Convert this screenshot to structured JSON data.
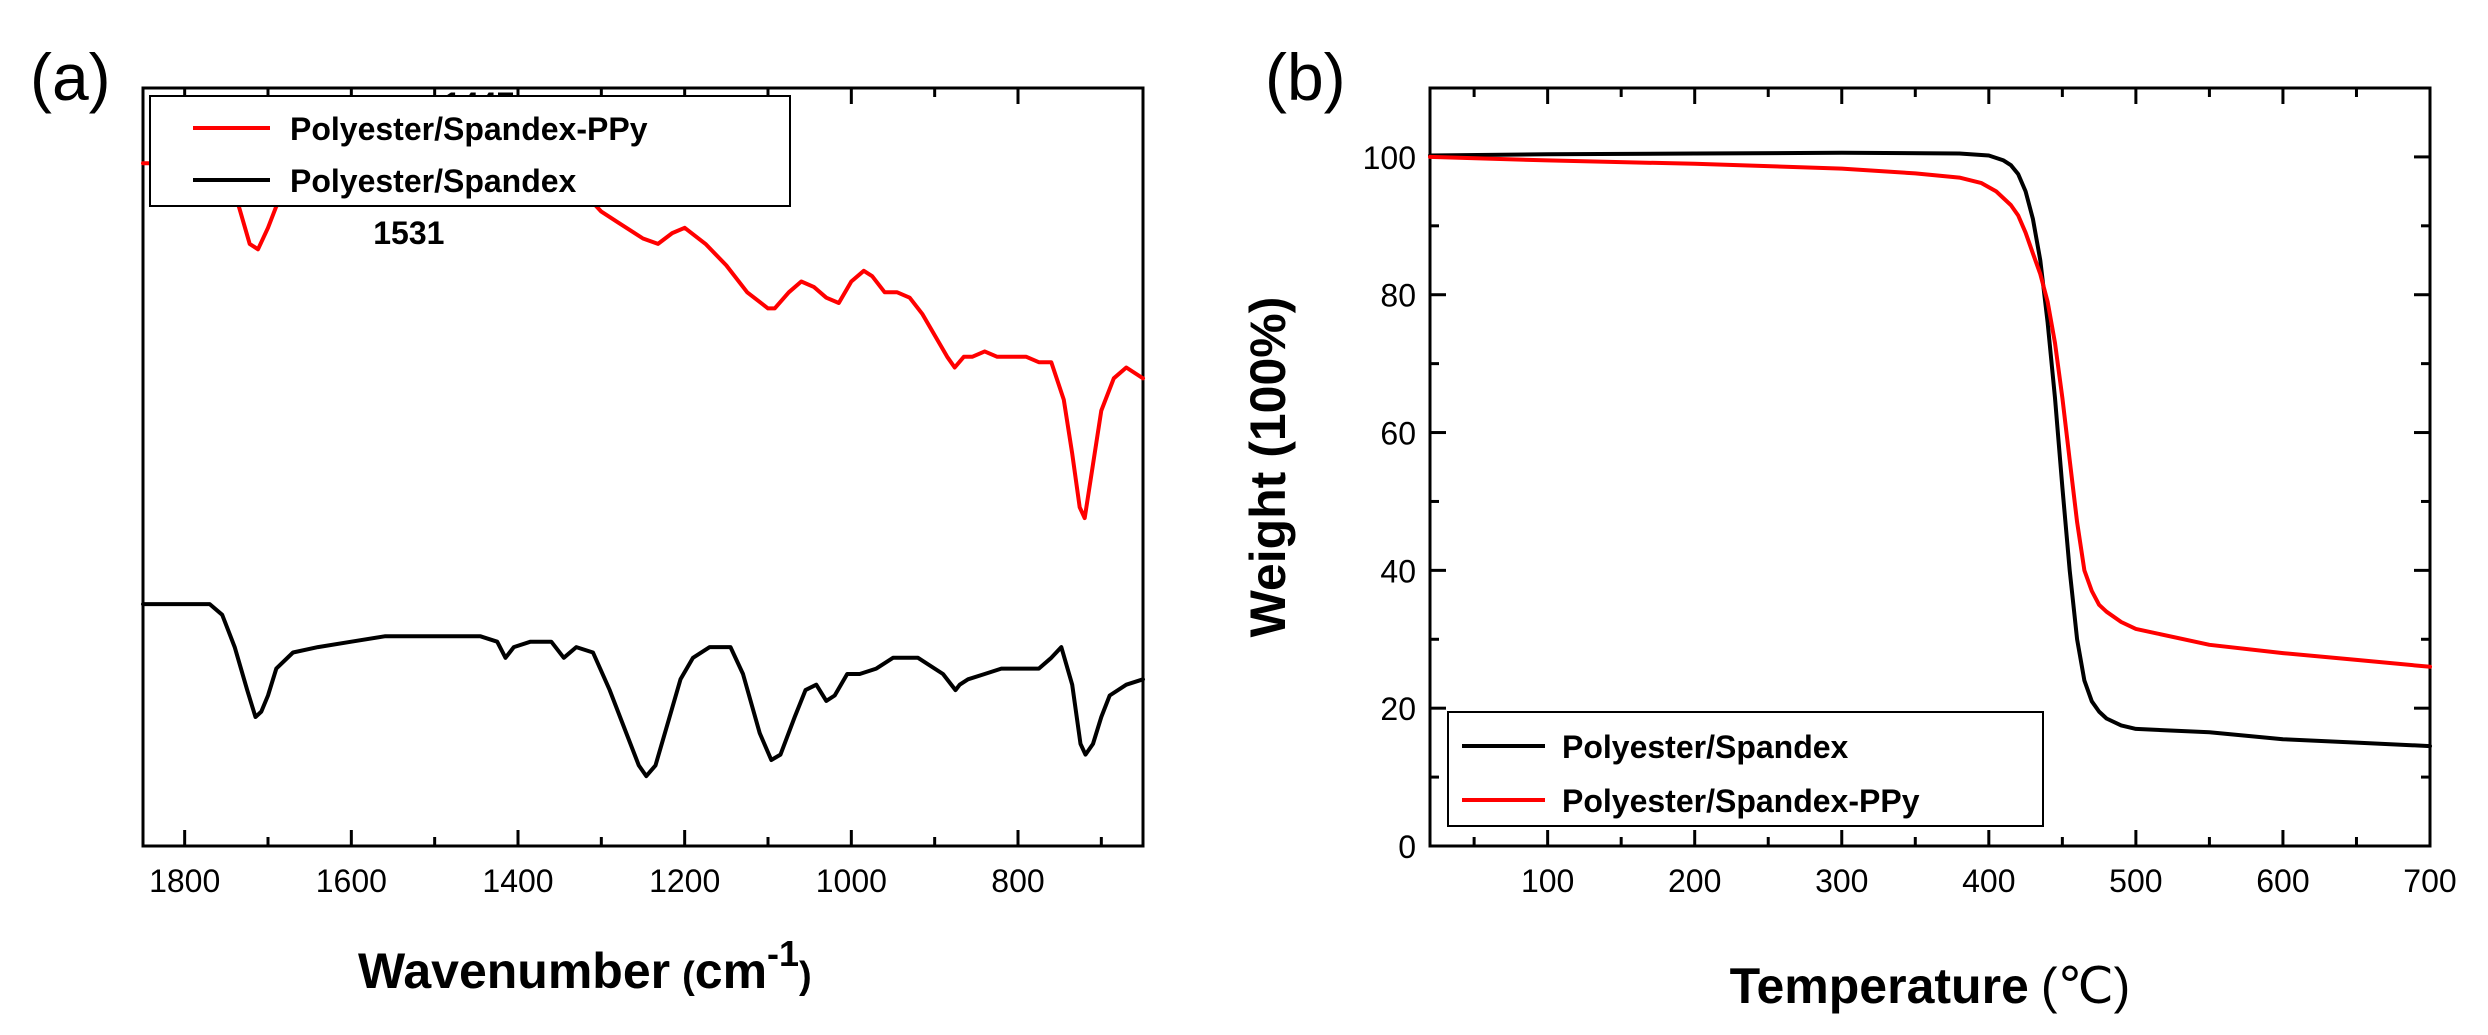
{
  "chart_data": [
    {
      "panel": "(a)",
      "type": "line",
      "xlabel": "Wavenumber",
      "xlabel_unit": "cm",
      "xlabel_unit_exp": "-1",
      "ylabel": "",
      "xlim": [
        1850,
        650
      ],
      "x_ticks": [
        1800,
        1600,
        1400,
        1200,
        1000,
        800
      ],
      "y_ticks_labeled": false,
      "legend_position": "top-left",
      "annotations": [
        {
          "text": "1447",
          "x": 1447,
          "y": 91
        },
        {
          "text": "1531",
          "x": 1531,
          "y": 67
        }
      ],
      "series": [
        {
          "name": "Polyester/Spandex-PPy",
          "color": "#ff0000",
          "x": [
            1850,
            1800,
            1770,
            1750,
            1735,
            1722,
            1712,
            1700,
            1690,
            1670,
            1640,
            1610,
            1585,
            1570,
            1555,
            1531,
            1510,
            1495,
            1480,
            1460,
            1447,
            1430,
            1420,
            1405,
            1380,
            1360,
            1345,
            1330,
            1318,
            1300,
            1280,
            1250,
            1232,
            1215,
            1200,
            1175,
            1150,
            1125,
            1100,
            1092,
            1075,
            1060,
            1045,
            1030,
            1015,
            1000,
            985,
            975,
            960,
            945,
            930,
            915,
            900,
            885,
            876,
            865,
            855,
            840,
            825,
            810,
            790,
            775,
            760,
            745,
            735,
            726,
            720,
            710,
            700,
            685,
            670,
            650
          ],
          "y": [
            82,
            82,
            82,
            80,
            74,
            67,
            66,
            70,
            74,
            77,
            80,
            82,
            83,
            82,
            79,
            76,
            76,
            79,
            78,
            77,
            78,
            78,
            76,
            79,
            80,
            81,
            78,
            78,
            76,
            73,
            71,
            68,
            67,
            69,
            70,
            67,
            63,
            58,
            55,
            55,
            58,
            60,
            59,
            57,
            56,
            60,
            62,
            61,
            58,
            58,
            57,
            54,
            50,
            46,
            44,
            46,
            46,
            47,
            46,
            46,
            46,
            45,
            45,
            38,
            28,
            18,
            16,
            26,
            36,
            42,
            44,
            42
          ]
        },
        {
          "name": "Polyester/Spandex",
          "color": "#000000",
          "x": [
            1850,
            1800,
            1770,
            1755,
            1740,
            1725,
            1715,
            1708,
            1700,
            1690,
            1670,
            1640,
            1600,
            1560,
            1520,
            1480,
            1445,
            1425,
            1415,
            1405,
            1385,
            1360,
            1345,
            1330,
            1310,
            1290,
            1270,
            1255,
            1246,
            1235,
            1220,
            1205,
            1190,
            1170,
            1145,
            1130,
            1110,
            1096,
            1085,
            1068,
            1055,
            1042,
            1030,
            1020,
            1005,
            990,
            970,
            950,
            920,
            890,
            875,
            870,
            860,
            840,
            820,
            800,
            775,
            760,
            748,
            735,
            725,
            719,
            710,
            700,
            690,
            670,
            650
          ],
          "y": [
            0,
            0,
            0,
            -2,
            -8,
            -16,
            -21,
            -20,
            -17,
            -12,
            -9,
            -8,
            -7,
            -6,
            -6,
            -6,
            -6,
            -7,
            -10,
            -8,
            -7,
            -7,
            -10,
            -8,
            -9,
            -16,
            -24,
            -30,
            -32,
            -30,
            -22,
            -14,
            -10,
            -8,
            -8,
            -13,
            -24,
            -29,
            -28,
            -21,
            -16,
            -15,
            -18,
            -17,
            -13,
            -13,
            -12,
            -10,
            -10,
            -13,
            -16,
            -15,
            -14,
            -13,
            -12,
            -12,
            -12,
            -10,
            -8,
            -15,
            -26,
            -28,
            -26,
            -21,
            -17,
            -15,
            -14
          ]
        }
      ]
    },
    {
      "panel": "(b)",
      "type": "line",
      "xlabel": "Temperature",
      "xlabel_unit": "℃",
      "ylabel": "Weight (100%)",
      "xlim": [
        20,
        700
      ],
      "ylim": [
        0,
        110
      ],
      "x_ticks": [
        100,
        200,
        300,
        400,
        500,
        600,
        700
      ],
      "y_ticks": [
        0,
        20,
        40,
        60,
        80,
        100
      ],
      "legend_position": "bottom-left",
      "series": [
        {
          "name": "Polyester/Spandex",
          "color": "#000000",
          "x": [
            20,
            100,
            200,
            300,
            380,
            400,
            410,
            415,
            420,
            425,
            430,
            435,
            440,
            445,
            450,
            455,
            460,
            465,
            470,
            475,
            480,
            490,
            500,
            550,
            600,
            650,
            700
          ],
          "y": [
            100.2,
            100.4,
            100.5,
            100.6,
            100.5,
            100.2,
            99.5,
            98.8,
            97.5,
            95,
            91,
            85,
            76,
            65,
            52,
            40,
            30,
            24,
            21,
            19.5,
            18.5,
            17.5,
            17,
            16.5,
            15.5,
            15,
            14.5
          ]
        },
        {
          "name": "Polyester/Spandex-PPy",
          "color": "#ff0000",
          "x": [
            20,
            100,
            200,
            300,
            350,
            380,
            395,
            405,
            415,
            420,
            425,
            430,
            435,
            440,
            445,
            450,
            455,
            460,
            465,
            470,
            475,
            480,
            490,
            500,
            550,
            600,
            650,
            700
          ],
          "y": [
            100,
            99.5,
            99,
            98.3,
            97.6,
            97,
            96.2,
            95,
            93,
            91.5,
            89,
            86,
            83,
            79,
            73,
            65,
            56,
            47,
            40,
            37,
            35,
            34,
            32.5,
            31.5,
            29.2,
            28,
            27,
            26
          ]
        }
      ]
    }
  ]
}
